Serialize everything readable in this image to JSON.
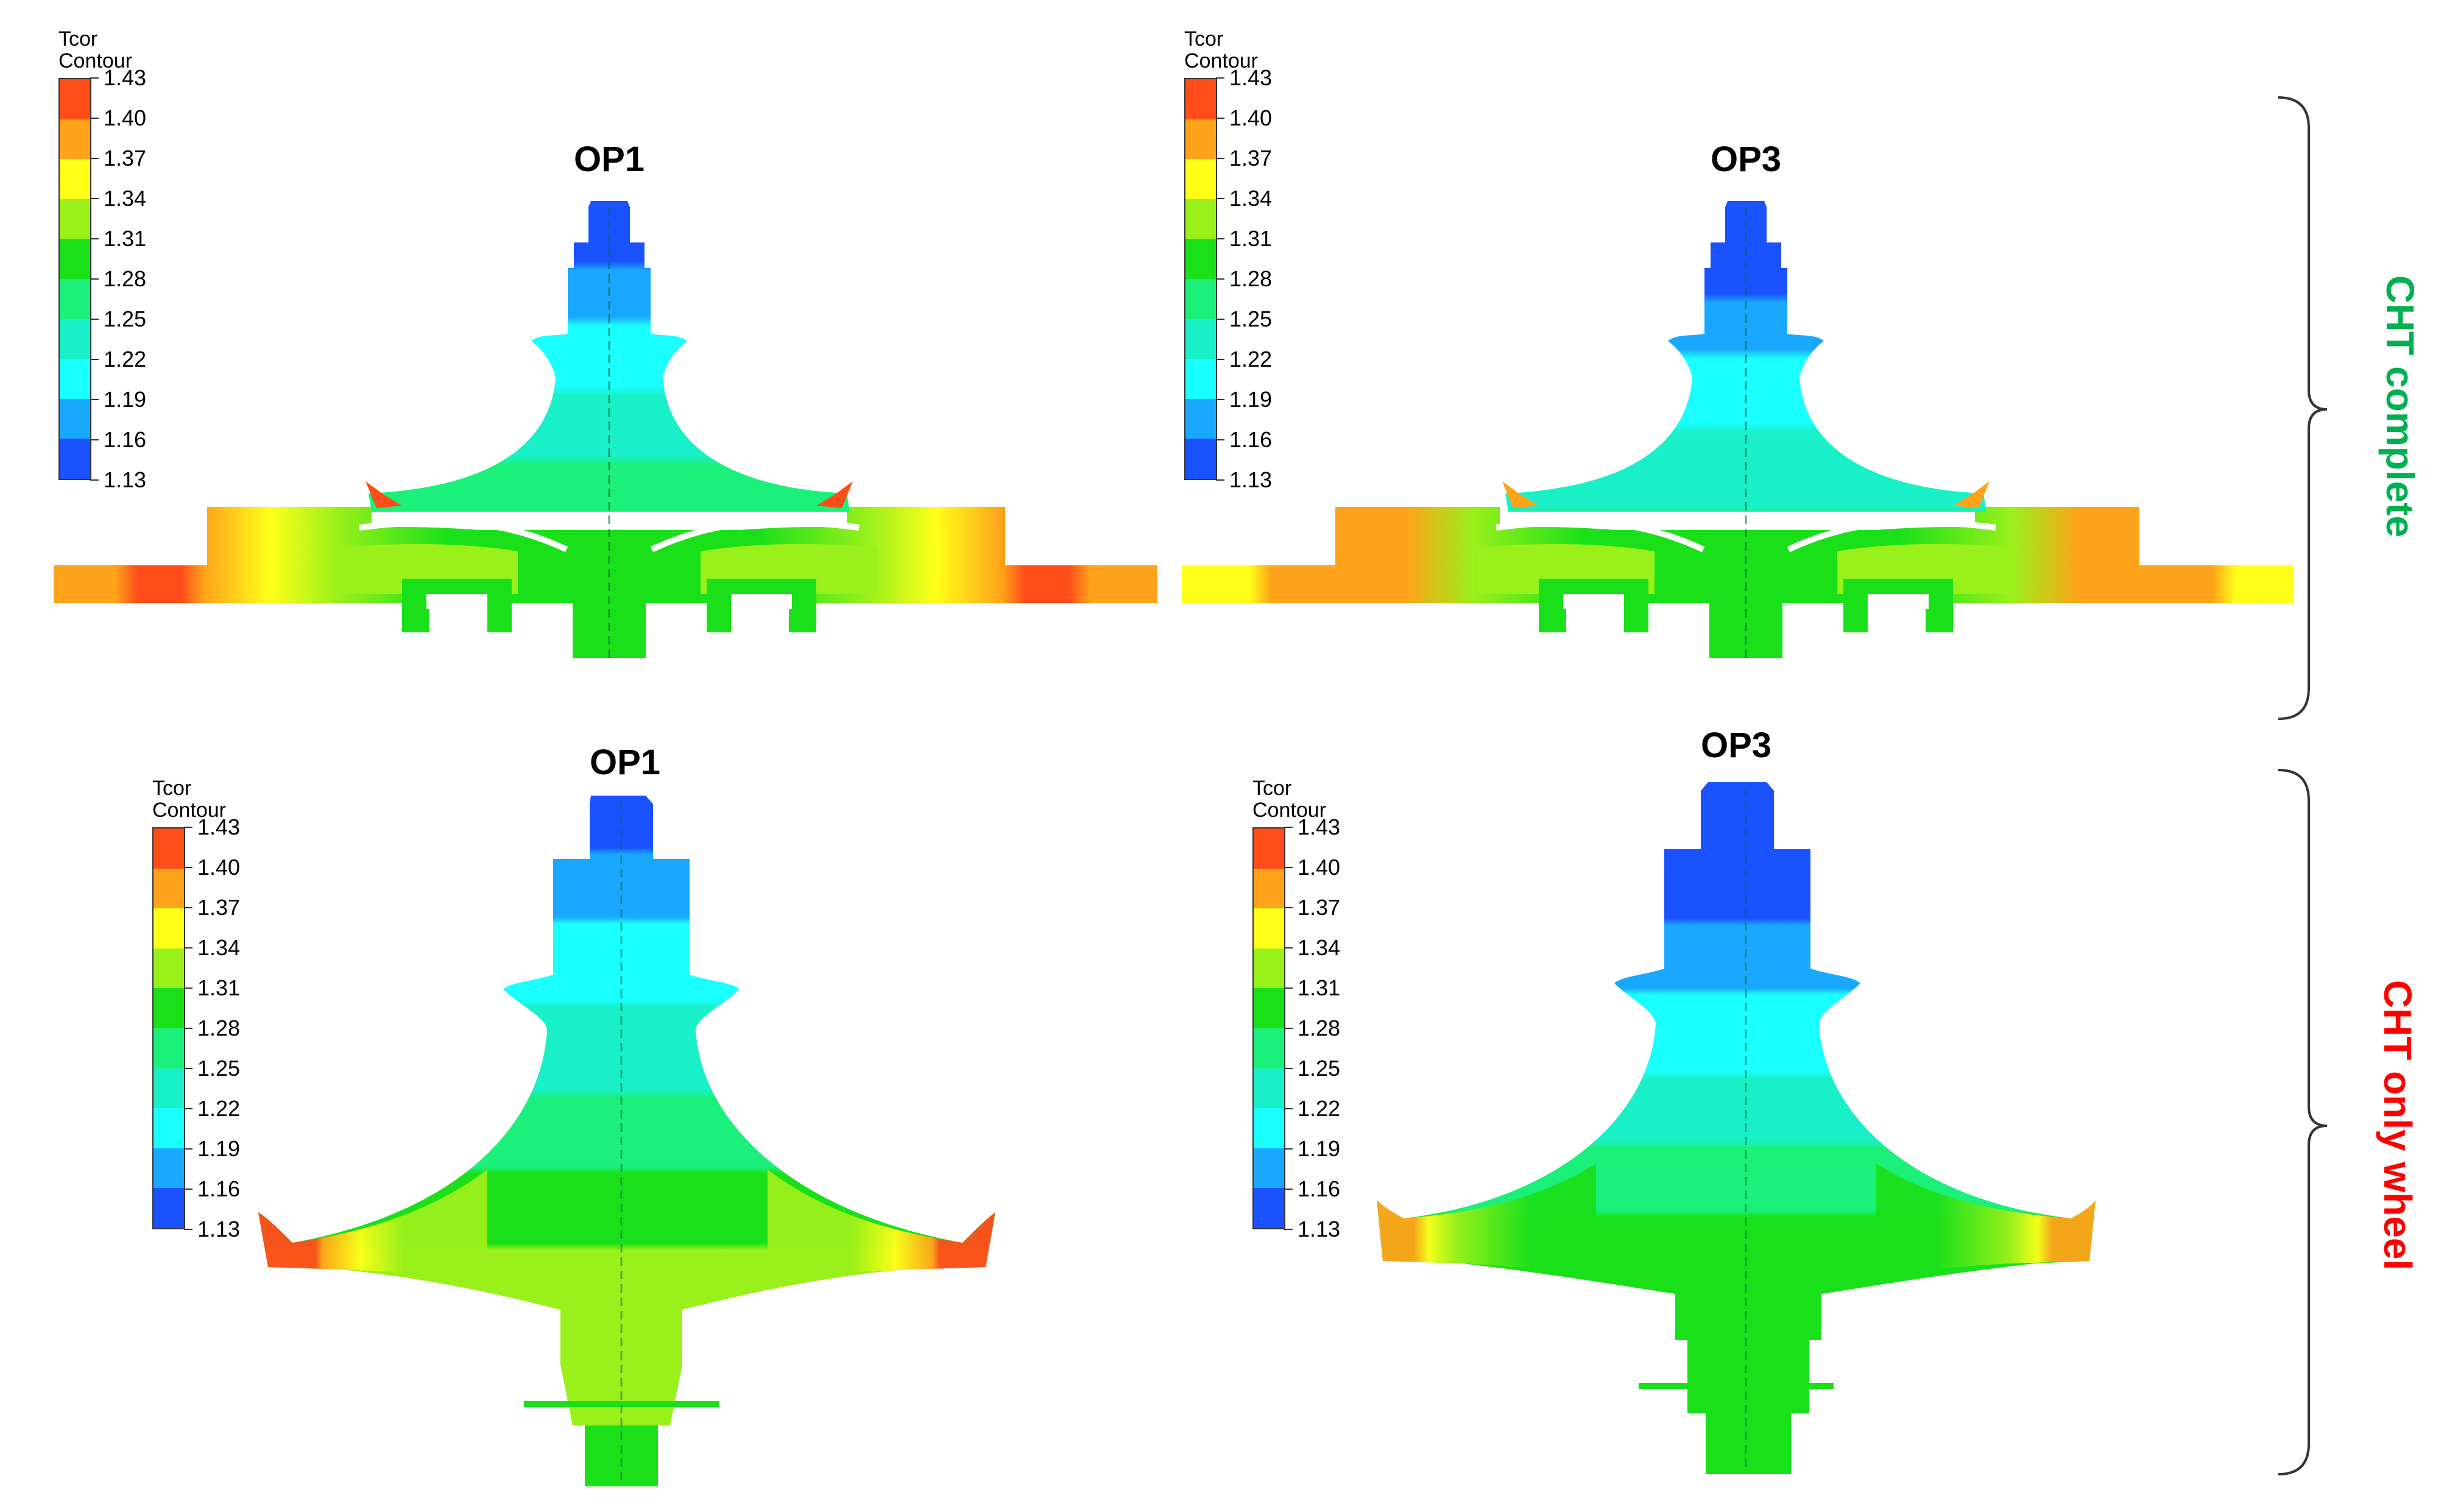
{
  "legend": {
    "title_line1": "Tcor",
    "title_line2": "Contour",
    "ticks": [
      "1.43",
      "1.40",
      "1.37",
      "1.34",
      "1.31",
      "1.28",
      "1.25",
      "1.22",
      "1.19",
      "1.16",
      "1.13"
    ],
    "colors": [
      "#ff4d1a",
      "#ffa31a",
      "#ffff1a",
      "#9af01a",
      "#1ae01a",
      "#1af07a",
      "#1af0c8",
      "#1affff",
      "#1aa8ff",
      "#1a52ff"
    ]
  },
  "panels": [
    {
      "title": "OP1",
      "group": "CHT complete"
    },
    {
      "title": "OP3",
      "group": "CHT complete"
    },
    {
      "title": "OP1",
      "group": "CHT only wheel"
    },
    {
      "title": "OP3",
      "group": "CHT only wheel"
    }
  ],
  "groups": {
    "complete": {
      "label": "CHT complete",
      "color": "#00b050"
    },
    "wheel": {
      "label": "CHT only wheel",
      "color": "#ff0000"
    }
  }
}
